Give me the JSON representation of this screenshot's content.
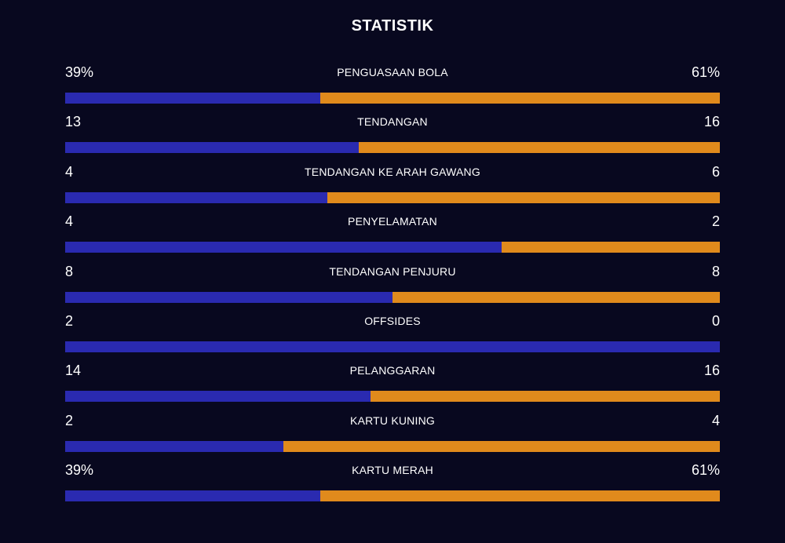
{
  "title": "STATISTIK",
  "colors": {
    "background": "#08081f",
    "home": "#2a2ab0",
    "away": "#e08a1c",
    "text": "#ffffff"
  },
  "stats": [
    {
      "label": "PENGUASAAN BOLA",
      "home": "39%",
      "away": "61%",
      "home_share": 0.39
    },
    {
      "label": "TENDANGAN",
      "home": "13",
      "away": "16",
      "home_share": 0.448
    },
    {
      "label": "TENDANGAN KE ARAH GAWANG",
      "home": "4",
      "away": "6",
      "home_share": 0.4
    },
    {
      "label": "PENYELAMATAN",
      "home": "4",
      "away": "2",
      "home_share": 0.667
    },
    {
      "label": "TENDANGAN PENJURU",
      "home": "8",
      "away": "8",
      "home_share": 0.5
    },
    {
      "label": "OFFSIDES",
      "home": "2",
      "away": "0",
      "home_share": 1.0
    },
    {
      "label": "PELANGGARAN",
      "home": "14",
      "away": "16",
      "home_share": 0.467
    },
    {
      "label": "KARTU KUNING",
      "home": "2",
      "away": "4",
      "home_share": 0.333
    },
    {
      "label": "KARTU MERAH",
      "home": "39%",
      "away": "61%",
      "home_share": 0.39
    }
  ]
}
